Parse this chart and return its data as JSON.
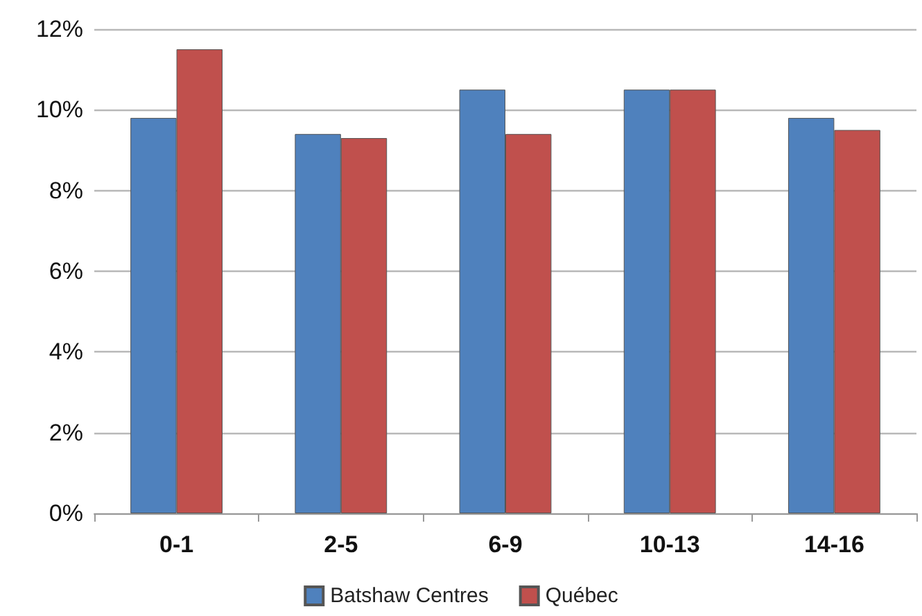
{
  "chart_data": {
    "type": "bar",
    "categories": [
      "0-1",
      "2-5",
      "6-9",
      "10-13",
      "14-16"
    ],
    "series": [
      {
        "name": "Batshaw Centres",
        "color": "#4f81bd",
        "values": [
          9.8,
          9.4,
          10.5,
          10.5,
          9.8
        ]
      },
      {
        "name": "Québec",
        "color": "#c0504d",
        "values": [
          11.5,
          9.3,
          9.4,
          10.5,
          9.5
        ]
      }
    ],
    "ylim": [
      0,
      12
    ],
    "yticks": [
      {
        "value": 0,
        "label": "0%"
      },
      {
        "value": 2,
        "label": "2%"
      },
      {
        "value": 4,
        "label": "4%"
      },
      {
        "value": 6,
        "label": "6%"
      },
      {
        "value": 8,
        "label": "8%"
      },
      {
        "value": 10,
        "label": "10%"
      },
      {
        "value": 12,
        "label": "12%"
      }
    ],
    "grid": "y",
    "legend": "bottom"
  }
}
